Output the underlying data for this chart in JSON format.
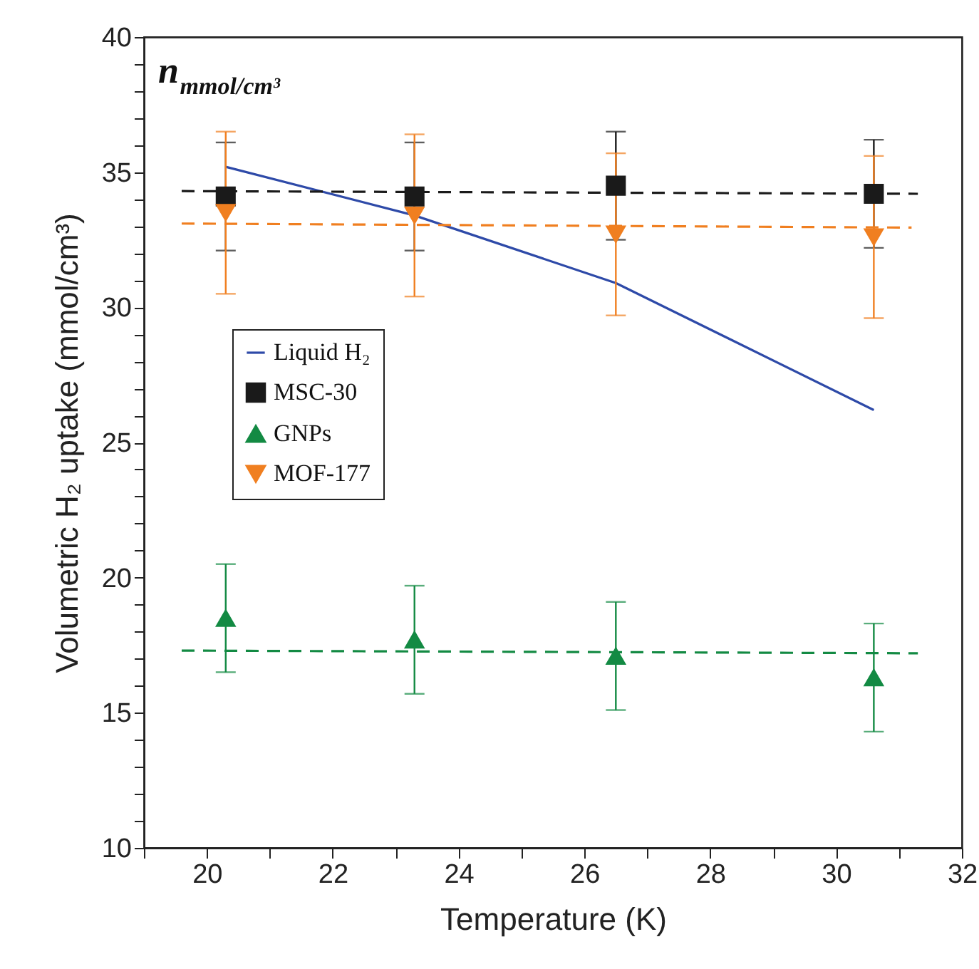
{
  "chart_data": {
    "type": "scatter",
    "xlabel": "Temperature (K)",
    "ylabel": "Volumetric H₂ uptake (mmol/cm³)",
    "annotations": [
      "n$_{mmol/cm³}$"
    ],
    "x": [
      20.3,
      23.3,
      26.5,
      30.6
    ],
    "series": [
      {
        "name": "Liquid H₂",
        "type": "line",
        "color": "#2e4aa8",
        "line_style": "solid",
        "values": [
          35.2,
          33.4,
          30.9,
          26.2
        ]
      },
      {
        "name": "MSC-30",
        "marker": "square",
        "color": "#1a1a1a",
        "values": [
          34.1,
          34.1,
          34.5,
          34.2
        ],
        "errors": [
          2,
          2,
          2,
          2
        ]
      },
      {
        "name": "GNPs",
        "marker": "triangle",
        "color": "#138a43",
        "values": [
          18.5,
          17.7,
          17.1,
          16.3
        ],
        "errors": [
          2,
          2,
          2,
          2
        ]
      },
      {
        "name": "MOF-177",
        "marker": "triangle-down",
        "color": "#f07f20",
        "values": [
          33.5,
          33.4,
          32.7,
          32.6
        ],
        "errors": [
          3,
          3,
          3,
          3
        ]
      },
      {
        "type": "line",
        "color": "#1a1a1a",
        "line_style": "dashed",
        "x": [
          19.6,
          31.3
        ],
        "values": [
          34.3,
          34.2
        ]
      },
      {
        "type": "line",
        "color": "#f07f20",
        "line_style": "dashed",
        "x": [
          19.6,
          31.2
        ],
        "values": [
          33.1,
          32.95
        ]
      },
      {
        "type": "line",
        "color": "#138a43",
        "line_style": "dashed",
        "x": [
          19.6,
          31.3
        ],
        "values": [
          17.3,
          17.2
        ]
      }
    ],
    "xlim": [
      19,
      32
    ],
    "xticks": [
      {
        "value": 19,
        "label": null
      },
      20,
      {
        "value": 21,
        "label": null
      },
      22,
      {
        "value": 23,
        "label": null
      },
      24,
      {
        "value": 25,
        "label": null
      },
      26,
      {
        "value": 27,
        "label": null
      },
      28,
      {
        "value": 29,
        "label": null
      },
      30,
      {
        "value": 31,
        "label": null
      },
      32
    ],
    "ylim": [
      10,
      40
    ],
    "yticks": [
      10,
      {
        "value": 11,
        "label": null
      },
      {
        "value": 12,
        "label": null
      },
      {
        "value": 13,
        "label": null
      },
      {
        "value": 14,
        "label": null
      },
      15,
      {
        "value": 16,
        "label": null
      },
      {
        "value": 17,
        "label": null
      },
      {
        "value": 18,
        "label": null
      },
      {
        "value": 19,
        "label": null
      },
      20,
      {
        "value": 21,
        "label": null
      },
      {
        "value": 22,
        "label": null
      },
      {
        "value": 23,
        "label": null
      },
      {
        "value": 24,
        "label": null
      },
      25,
      {
        "value": 26,
        "label": null
      },
      {
        "value": 27,
        "label": null
      },
      {
        "value": 28,
        "label": null
      },
      {
        "value": 29,
        "label": null
      },
      30,
      {
        "value": 31,
        "label": null
      },
      {
        "value": 32,
        "label": null
      },
      {
        "value": 33,
        "label": null
      },
      {
        "value": 34,
        "label": null
      },
      35,
      {
        "value": 36,
        "label": null
      },
      {
        "value": 37,
        "label": null
      },
      {
        "value": 38,
        "label": null
      },
      {
        "value": 39,
        "label": null
      },
      40
    ],
    "grid": false,
    "legend": "center left"
  }
}
